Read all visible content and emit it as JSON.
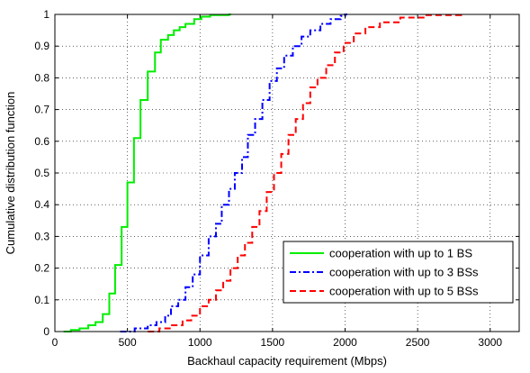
{
  "chart_data": {
    "type": "line",
    "xlabel": "Backhaul capacity requirement (Mbps)",
    "ylabel": "Cumulative distribution function",
    "xlim": [
      0,
      3200
    ],
    "ylim": [
      0,
      1
    ],
    "xticks": [
      0,
      500,
      1000,
      1500,
      2000,
      2500,
      3000
    ],
    "yticks": [
      0,
      0.1,
      0.2,
      0.3,
      0.4,
      0.5,
      0.6,
      0.7,
      0.8,
      0.9,
      1
    ],
    "grid": true,
    "legend_position": "lower-right",
    "series": [
      {
        "name": "cooperation with up to 1 BS",
        "color": "#00ee00",
        "style": "solid",
        "x": [
          60,
          110,
          170,
          230,
          280,
          330,
          375,
          415,
          460,
          500,
          545,
          590,
          640,
          690,
          730,
          780,
          820,
          860,
          900,
          960,
          1010,
          1070,
          1200
        ],
        "y": [
          0,
          0.005,
          0.01,
          0.02,
          0.03,
          0.055,
          0.12,
          0.21,
          0.33,
          0.47,
          0.61,
          0.73,
          0.82,
          0.88,
          0.92,
          0.935,
          0.95,
          0.96,
          0.97,
          0.985,
          0.993,
          0.998,
          1
        ]
      },
      {
        "name": "cooperation with up to 3 BSs",
        "color": "#0000ff",
        "style": "dashdot",
        "x": [
          450,
          550,
          640,
          700,
          760,
          800,
          850,
          900,
          950,
          1000,
          1060,
          1110,
          1150,
          1200,
          1240,
          1290,
          1330,
          1380,
          1430,
          1480,
          1530,
          1580,
          1640,
          1700,
          1760,
          1830,
          1900,
          1970,
          2000
        ],
        "y": [
          0,
          0.01,
          0.02,
          0.03,
          0.05,
          0.08,
          0.1,
          0.14,
          0.18,
          0.24,
          0.3,
          0.34,
          0.4,
          0.45,
          0.5,
          0.55,
          0.62,
          0.67,
          0.73,
          0.79,
          0.83,
          0.87,
          0.9,
          0.93,
          0.95,
          0.97,
          0.985,
          0.995,
          1
        ]
      },
      {
        "name": "cooperation with up to 5 BSs",
        "color": "#ff0000",
        "style": "dashed",
        "x": [
          640,
          720,
          800,
          880,
          940,
          1000,
          1060,
          1110,
          1160,
          1210,
          1260,
          1310,
          1360,
          1410,
          1460,
          1510,
          1560,
          1610,
          1660,
          1710,
          1760,
          1810,
          1870,
          1930,
          1990,
          2060,
          2140,
          2240,
          2380,
          2550,
          2800
        ],
        "y": [
          0,
          0.01,
          0.02,
          0.035,
          0.05,
          0.08,
          0.1,
          0.13,
          0.16,
          0.2,
          0.24,
          0.28,
          0.33,
          0.38,
          0.44,
          0.5,
          0.56,
          0.62,
          0.67,
          0.72,
          0.77,
          0.8,
          0.84,
          0.88,
          0.91,
          0.94,
          0.96,
          0.975,
          0.99,
          0.998,
          1
        ]
      }
    ]
  }
}
